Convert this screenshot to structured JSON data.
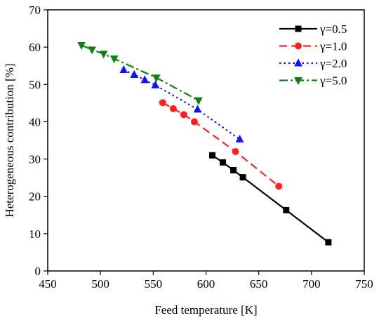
{
  "chart_data": {
    "type": "line",
    "title": "",
    "xlabel": "Feed temperature [K]",
    "ylabel": "Heterogeneous contribution [%]",
    "xlim": [
      450,
      750
    ],
    "ylim": [
      0,
      70
    ],
    "xticks": [
      450,
      500,
      550,
      600,
      650,
      700,
      750
    ],
    "yticks": [
      0,
      10,
      20,
      30,
      40,
      50,
      60,
      70
    ],
    "legend_position": "top-right",
    "grid": false,
    "series": [
      {
        "name": "γ=0.5",
        "color": "#000000",
        "line": "solid",
        "marker": "square",
        "points": [
          [
            606,
            31.0
          ],
          [
            616,
            29.1
          ],
          [
            626,
            27.0
          ],
          [
            635,
            25.1
          ],
          [
            676,
            16.3
          ],
          [
            716,
            7.7
          ]
        ]
      },
      {
        "name": "γ=1.0",
        "color": "#ff2020",
        "line": "dashed",
        "marker": "circle",
        "points": [
          [
            559,
            45.1
          ],
          [
            569,
            43.5
          ],
          [
            579,
            41.9
          ],
          [
            589,
            40.0
          ],
          [
            628,
            32.0
          ],
          [
            669,
            22.7
          ]
        ]
      },
      {
        "name": "γ=2.0",
        "color": "#1010ff",
        "line": "dotted",
        "marker": "triangle-up",
        "points": [
          [
            522,
            53.9
          ],
          [
            532,
            52.6
          ],
          [
            542,
            51.2
          ],
          [
            552,
            49.8
          ],
          [
            592,
            43.3
          ],
          [
            632,
            35.3
          ]
        ]
      },
      {
        "name": "γ=5.0",
        "color": "#108010",
        "line": "dashdot",
        "marker": "triangle-down",
        "points": [
          [
            482,
            60.5
          ],
          [
            492,
            59.3
          ],
          [
            503,
            58.2
          ],
          [
            513,
            56.9
          ],
          [
            553,
            51.8
          ],
          [
            593,
            45.7
          ]
        ]
      }
    ]
  }
}
